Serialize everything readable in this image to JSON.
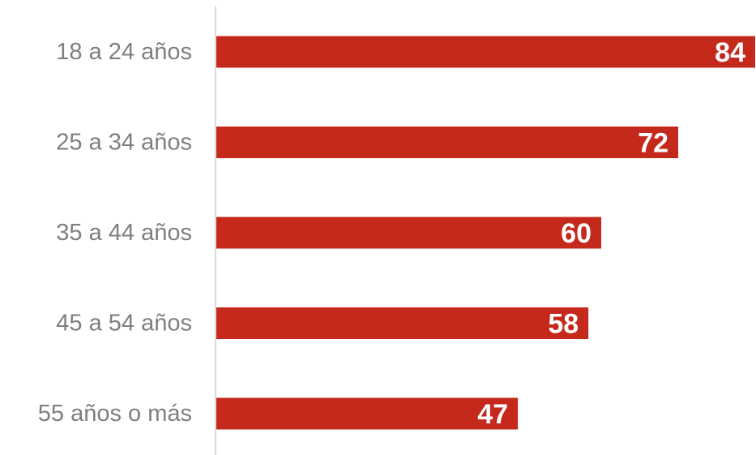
{
  "chart_data": {
    "type": "bar",
    "orientation": "horizontal",
    "categories": [
      "18 a 24 años",
      "25 a 34 años",
      "35 a 44 años",
      "45 a 54 años",
      "55 años o más"
    ],
    "values": [
      84,
      72,
      60,
      58,
      47
    ],
    "title": "",
    "xlabel": "",
    "ylabel": "",
    "xlim": [
      0,
      84
    ],
    "grid": false,
    "legend": "none",
    "bar_color": "#c4291b",
    "label_color": "#7f7f7f",
    "value_label_color": "#ffffff",
    "axis_color": "#d9d9d9"
  }
}
